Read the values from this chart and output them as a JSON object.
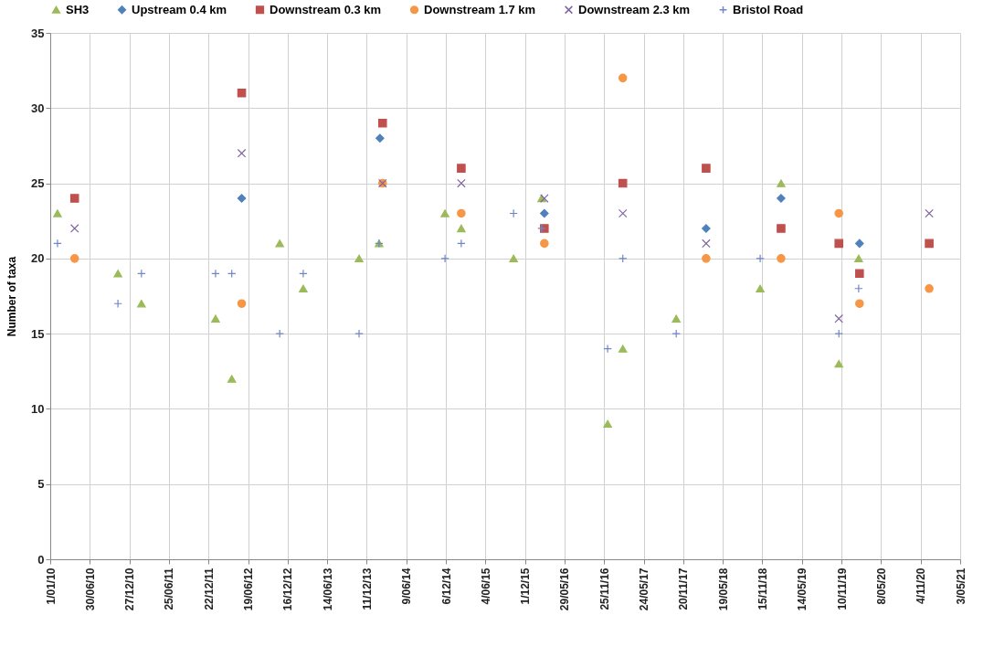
{
  "chart_data": {
    "type": "scatter",
    "ylabel": "Number of taxa",
    "legend": "top",
    "grid": true,
    "xlim": [
      "2010-01-01",
      "2021-05-03"
    ],
    "xticks": [
      {
        "value": "2010-01-01",
        "label": "1/01/10"
      },
      {
        "value": "2010-06-30",
        "label": "30/06/10"
      },
      {
        "value": "2010-12-27",
        "label": "27/12/10"
      },
      {
        "value": "2011-06-25",
        "label": "25/06/11"
      },
      {
        "value": "2011-12-22",
        "label": "22/12/11"
      },
      {
        "value": "2012-06-19",
        "label": "19/06/12"
      },
      {
        "value": "2012-12-16",
        "label": "16/12/12"
      },
      {
        "value": "2013-06-14",
        "label": "14/06/13"
      },
      {
        "value": "2013-12-11",
        "label": "11/12/13"
      },
      {
        "value": "2014-06-09",
        "label": "9/06/14"
      },
      {
        "value": "2014-12-06",
        "label": "6/12/14"
      },
      {
        "value": "2015-06-04",
        "label": "4/06/15"
      },
      {
        "value": "2015-12-01",
        "label": "1/12/15"
      },
      {
        "value": "2016-05-29",
        "label": "29/05/16"
      },
      {
        "value": "2016-11-25",
        "label": "25/11/16"
      },
      {
        "value": "2017-05-24",
        "label": "24/05/17"
      },
      {
        "value": "2017-11-20",
        "label": "20/11/17"
      },
      {
        "value": "2018-05-19",
        "label": "19/05/18"
      },
      {
        "value": "2018-11-15",
        "label": "15/11/18"
      },
      {
        "value": "2019-05-14",
        "label": "14/05/19"
      },
      {
        "value": "2019-11-10",
        "label": "10/11/19"
      },
      {
        "value": "2020-05-08",
        "label": "8/05/20"
      },
      {
        "value": "2020-11-04",
        "label": "4/11/20"
      },
      {
        "value": "2021-05-03",
        "label": "3/05/21"
      }
    ],
    "ylim": [
      0,
      35
    ],
    "yticks": [
      0,
      5,
      10,
      15,
      20,
      25,
      30,
      35
    ],
    "series": [
      {
        "name": "SH3",
        "color": "#9bbb59",
        "marker": "triangle",
        "x": [
          "2010-02-03",
          "2010-11-05",
          "2011-02-20",
          "2012-01-23",
          "2012-04-06",
          "2012-11-10",
          "2013-02-25",
          "2013-11-06",
          "2014-02-05",
          "2014-12-02",
          "2015-02-14",
          "2015-10-10",
          "2016-02-15",
          "2016-12-11",
          "2017-02-18",
          "2017-10-19",
          "2018-11-05",
          "2019-02-08",
          "2019-10-29",
          "2020-01-27"
        ],
        "values": [
          23,
          19,
          17,
          16,
          12,
          21,
          18,
          20,
          21,
          23,
          22,
          20,
          24,
          9,
          14,
          16,
          18,
          25,
          13,
          20
        ]
      },
      {
        "name": "Upstream 0.4 km",
        "color": "#4f81bd",
        "marker": "diamond",
        "x": [
          "2012-05-21",
          "2014-02-09",
          "2016-02-27",
          "2018-03-04",
          "2019-02-08",
          "2020-01-31"
        ],
        "values": [
          24,
          28,
          23,
          22,
          24,
          21
        ]
      },
      {
        "name": "Downstream 0.3 km",
        "color": "#c0504d",
        "marker": "square",
        "x": [
          "2010-04-22",
          "2012-05-21",
          "2014-02-21",
          "2015-02-14",
          "2016-02-27",
          "2017-02-18",
          "2018-03-04",
          "2019-02-08",
          "2019-10-29",
          "2020-01-31",
          "2020-12-13"
        ],
        "values": [
          24,
          31,
          29,
          26,
          22,
          25,
          26,
          22,
          21,
          19,
          21
        ]
      },
      {
        "name": "Downstream 1.7 km",
        "color": "#f79646",
        "marker": "circle",
        "x": [
          "2010-04-22",
          "2012-05-21",
          "2014-02-21",
          "2015-02-14",
          "2016-02-27",
          "2017-02-18",
          "2018-03-04",
          "2019-02-08",
          "2019-10-29",
          "2020-01-31",
          "2020-12-13"
        ],
        "values": [
          20,
          17,
          25,
          23,
          21,
          32,
          20,
          20,
          23,
          17,
          18
        ]
      },
      {
        "name": "Downstream 2.3 km",
        "color": "#8064a2",
        "marker": "x",
        "x": [
          "2010-04-22",
          "2012-05-21",
          "2014-02-21",
          "2015-02-14",
          "2016-02-27",
          "2017-02-18",
          "2018-03-04",
          "2019-10-29",
          "2020-12-13"
        ],
        "values": [
          22,
          27,
          25,
          25,
          24,
          23,
          21,
          16,
          23
        ]
      },
      {
        "name": "Bristol Road",
        "color": "#6f86c9",
        "marker": "cross",
        "x": [
          "2010-02-03",
          "2010-11-05",
          "2011-02-20",
          "2012-01-23",
          "2012-04-06",
          "2012-11-10",
          "2013-02-25",
          "2013-11-06",
          "2014-02-05",
          "2014-12-02",
          "2015-02-14",
          "2015-10-10",
          "2016-02-15",
          "2016-12-11",
          "2017-02-18",
          "2017-10-19",
          "2018-11-05",
          "2019-10-29",
          "2020-01-27"
        ],
        "values": [
          21,
          17,
          19,
          19,
          19,
          15,
          19,
          15,
          21,
          20,
          21,
          23,
          22,
          14,
          20,
          15,
          20,
          15,
          18
        ]
      }
    ]
  }
}
